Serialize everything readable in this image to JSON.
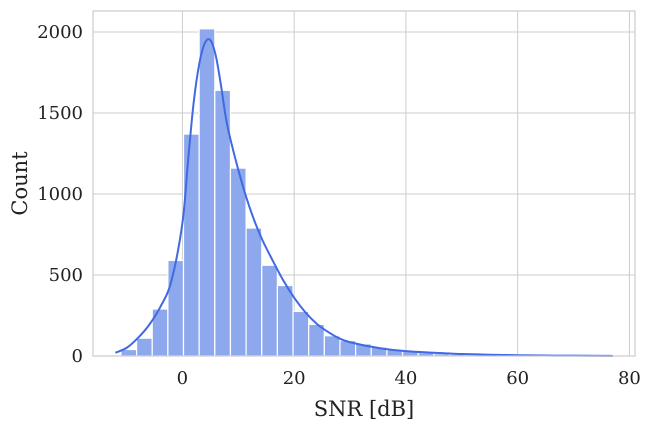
{
  "chart_data": {
    "type": "bar",
    "xlabel": "SNR [dB]",
    "ylabel": "Count",
    "xlim": [
      -16,
      81
    ],
    "ylim": [
      0,
      2130
    ],
    "x_ticks": [
      0,
      20,
      40,
      60,
      80
    ],
    "y_ticks": [
      0,
      500,
      1000,
      1500,
      2000
    ],
    "grid": true,
    "bins": [
      {
        "x0": -11.0,
        "x1": -8.2,
        "count": 40
      },
      {
        "x0": -8.2,
        "x1": -5.4,
        "count": 110
      },
      {
        "x0": -5.4,
        "x1": -2.6,
        "count": 290
      },
      {
        "x0": -2.6,
        "x1": 0.2,
        "count": 590
      },
      {
        "x0": 0.2,
        "x1": 3.0,
        "count": 1370
      },
      {
        "x0": 3.0,
        "x1": 5.8,
        "count": 2020
      },
      {
        "x0": 5.8,
        "x1": 8.6,
        "count": 1640
      },
      {
        "x0": 8.6,
        "x1": 11.4,
        "count": 1160
      },
      {
        "x0": 11.4,
        "x1": 14.2,
        "count": 790
      },
      {
        "x0": 14.2,
        "x1": 17.0,
        "count": 560
      },
      {
        "x0": 17.0,
        "x1": 19.8,
        "count": 435
      },
      {
        "x0": 19.8,
        "x1": 22.6,
        "count": 275
      },
      {
        "x0": 22.6,
        "x1": 25.4,
        "count": 195
      },
      {
        "x0": 25.4,
        "x1": 28.2,
        "count": 125
      },
      {
        "x0": 28.2,
        "x1": 31.0,
        "count": 95
      },
      {
        "x0": 31.0,
        "x1": 33.8,
        "count": 75
      },
      {
        "x0": 33.8,
        "x1": 36.6,
        "count": 55
      },
      {
        "x0": 36.6,
        "x1": 39.4,
        "count": 38
      },
      {
        "x0": 39.4,
        "x1": 42.2,
        "count": 28
      },
      {
        "x0": 42.2,
        "x1": 45.0,
        "count": 20
      },
      {
        "x0": 45.0,
        "x1": 47.8,
        "count": 14
      },
      {
        "x0": 47.8,
        "x1": 50.6,
        "count": 10
      },
      {
        "x0": 50.6,
        "x1": 53.4,
        "count": 7
      },
      {
        "x0": 53.4,
        "x1": 56.2,
        "count": 5
      },
      {
        "x0": 56.2,
        "x1": 59.0,
        "count": 4
      },
      {
        "x0": 59.0,
        "x1": 61.8,
        "count": 3
      },
      {
        "x0": 61.8,
        "x1": 64.6,
        "count": 2
      },
      {
        "x0": 64.6,
        "x1": 67.4,
        "count": 2
      },
      {
        "x0": 67.4,
        "x1": 70.2,
        "count": 1
      },
      {
        "x0": 70.2,
        "x1": 73.0,
        "count": 1
      },
      {
        "x0": 73.0,
        "x1": 75.8,
        "count": 1
      }
    ],
    "kde": {
      "x": [
        -12,
        -10,
        -8,
        -6,
        -4,
        -2,
        0,
        1,
        2,
        3,
        4,
        5,
        6,
        7,
        8,
        10,
        12,
        14,
        16,
        18,
        20,
        22,
        24,
        26,
        28,
        30,
        35,
        40,
        45,
        50,
        55,
        60,
        65,
        70,
        77
      ],
      "y": [
        20,
        50,
        110,
        190,
        300,
        460,
        820,
        1200,
        1560,
        1800,
        1930,
        1950,
        1850,
        1650,
        1430,
        1150,
        920,
        740,
        600,
        470,
        360,
        270,
        200,
        150,
        110,
        85,
        50,
        30,
        20,
        12,
        8,
        5,
        3,
        2,
        1
      ]
    },
    "colors": {
      "bar_fill": "#8da8ec",
      "bar_stroke": "#ffffff",
      "kde_line": "#4169e1",
      "grid": "#cccccc",
      "frame": "#cccccc"
    }
  }
}
